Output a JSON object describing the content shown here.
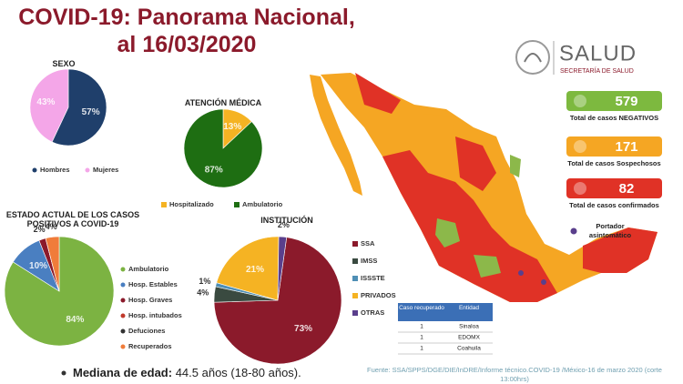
{
  "title": "COVID-19: Panorama Nacional, al 16/03/2020",
  "logo": {
    "name": "SALUD",
    "subtitle": "SECRETARÍA DE SALUD"
  },
  "chart_data": [
    {
      "type": "pie",
      "title": "SEXO",
      "categories": [
        "Hombres",
        "Mujeres"
      ],
      "values": [
        57,
        43
      ],
      "value_labels": [
        "57%",
        "43%"
      ],
      "colors": [
        "#1f3f6b",
        "#f4a6e8"
      ]
    },
    {
      "type": "pie",
      "title": "ATENCIÓN MÉDICA",
      "categories": [
        "Hospitalizado",
        "Ambulatorio"
      ],
      "values": [
        13,
        87
      ],
      "value_labels": [
        "13%",
        "87%"
      ],
      "colors": [
        "#f5b323",
        "#1e6e12"
      ]
    },
    {
      "type": "pie",
      "title": "ESTADO ACTUAL DE LOS CASOS POSITIVOS A COVID-19",
      "categories": [
        "Ambulatorio",
        "Hosp. Estables",
        "Hosp. Graves",
        "Hosp. intubados",
        "Defuciones",
        "Recuperados"
      ],
      "values": [
        84,
        10,
        2,
        0,
        0,
        4
      ],
      "value_labels": [
        "84%",
        "10%",
        "2%",
        null,
        null,
        "4%"
      ],
      "colors": [
        "#7cb342",
        "#4a7fc1",
        "#8b1a2b",
        "#c0392b",
        "#333333",
        "#f07c3a"
      ]
    },
    {
      "type": "pie",
      "title": "INSTITUCIÓN",
      "categories": [
        "SSA",
        "IMSS",
        "ISSSTE",
        "PRIVADOS",
        "OTRAS"
      ],
      "values": [
        73,
        4,
        1,
        21,
        2
      ],
      "value_labels": [
        "73%",
        "4%",
        "1%",
        "21%",
        "2%"
      ],
      "colors": [
        "#8b1a2b",
        "#3a4a40",
        "#4f8fb5",
        "#f5b323",
        "#5a3f8c"
      ]
    }
  ],
  "stats": [
    {
      "value": 579,
      "label": "Total de casos NEGATIVOS",
      "color": "#7db93f"
    },
    {
      "value": 171,
      "label": "Total de casos Sospechosos",
      "color": "#f5a623"
    },
    {
      "value": 82,
      "label": "Total de casos confirmados",
      "color": "#e03226"
    }
  ],
  "note": {
    "label": "Portador asintomático",
    "color": "#5a3f8c"
  },
  "table": {
    "header": [
      "Caso recuperado",
      "Entidad"
    ],
    "rows": [
      [
        1,
        "Sinaloa"
      ],
      [
        1,
        "EDOMX"
      ],
      [
        1,
        "Coahuila"
      ]
    ]
  },
  "median": {
    "label": "Mediana de edad:",
    "text": "44.5 años (18-80 años)."
  },
  "source": "Fuente: SSA/SPPS/DGE/DIE/InDRE/Informe técnico.COVID-19 /México-16 de marzo 2020 (corte 13:00hrs)"
}
